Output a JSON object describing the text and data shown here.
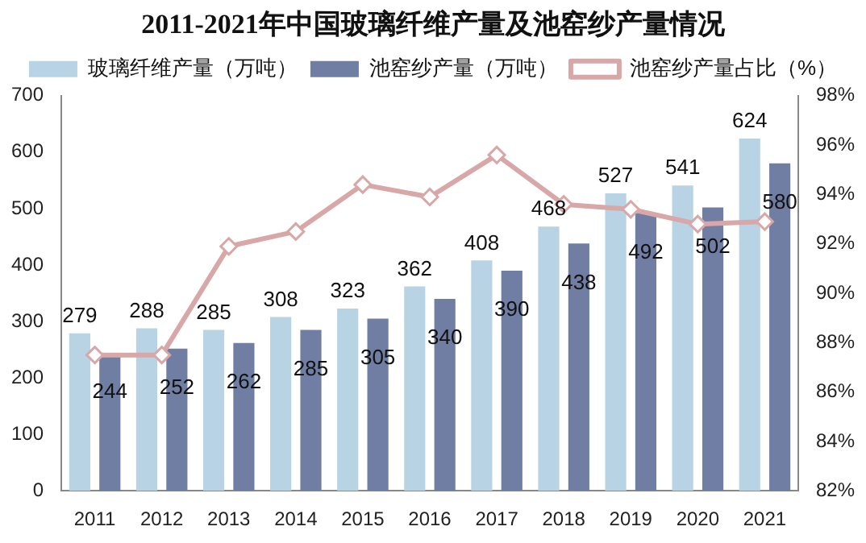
{
  "chart_data": {
    "type": "bar",
    "title": "2011-2021年中国玻璃纤维产量及池窑纱产量情况",
    "categories": [
      "2011",
      "2012",
      "2013",
      "2014",
      "2015",
      "2016",
      "2017",
      "2018",
      "2019",
      "2020",
      "2021"
    ],
    "series": [
      {
        "name": "玻璃纤维产量（万吨）",
        "color": "#b8d3e3",
        "values": [
          279,
          288,
          285,
          308,
          323,
          362,
          408,
          468,
          527,
          541,
          624
        ],
        "value_labels": [
          "279",
          "288",
          "285",
          "308",
          "323",
          "362",
          "408",
          "468",
          "527",
          "541",
          "624"
        ]
      },
      {
        "name": "池窑纱产量（万吨）",
        "color": "#717ea3",
        "values": [
          244,
          252,
          262,
          285,
          305,
          340,
          390,
          438,
          492,
          502,
          580
        ],
        "value_labels": [
          "244",
          "252",
          "262",
          "285",
          "305",
          "340",
          "390",
          "438",
          "492",
          "502",
          "580"
        ]
      },
      {
        "name": "池窑纱产量占比（%）",
        "type": "line",
        "axis": "y2",
        "color": "#d8a7a7",
        "marker": "diamond",
        "values": [
          87.5,
          87.5,
          91.9,
          92.5,
          94.4,
          93.9,
          95.6,
          93.6,
          93.4,
          92.8,
          92.9
        ]
      }
    ],
    "ylim": [
      0,
      700
    ],
    "yticks": [
      0,
      100,
      200,
      300,
      400,
      500,
      600,
      700
    ],
    "y2lim": [
      82,
      98
    ],
    "y2ticks": [
      {
        "value": 82,
        "label": "82%"
      },
      {
        "value": 84,
        "label": "84%"
      },
      {
        "value": 86,
        "label": "86%"
      },
      {
        "value": 88,
        "label": "88%"
      },
      {
        "value": 90,
        "label": "90%"
      },
      {
        "value": 92,
        "label": "92%"
      },
      {
        "value": 94,
        "label": "94%"
      },
      {
        "value": 96,
        "label": "96%"
      },
      {
        "value": 98,
        "label": "98%"
      }
    ],
    "grid": false,
    "legend": "top"
  }
}
